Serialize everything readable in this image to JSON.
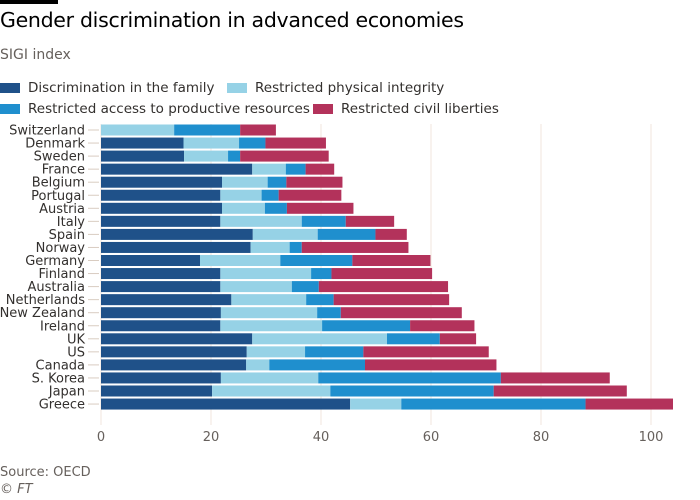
{
  "header": {
    "title": "Gender discrimination in advanced economies",
    "subtitle": "SIGI index"
  },
  "footer": {
    "source": "Source: OECD",
    "copyright": "© FT"
  },
  "colors": {
    "family": "#1f5189",
    "physical": "#96d2e6",
    "resources": "#1f8fce",
    "civil": "#b3325b",
    "grid": "#f2e5dc",
    "topbar": "#000000"
  },
  "chart_data": {
    "type": "bar",
    "orientation": "horizontal",
    "stacked": true,
    "title": "Gender discrimination in advanced economies",
    "subtitle": "SIGI index",
    "xlabel": "",
    "ylabel": "",
    "xlim": [
      0,
      105
    ],
    "xticks": [
      0,
      20,
      40,
      60,
      80,
      100
    ],
    "grid": true,
    "legend_position": "top",
    "categories": [
      "Switzerland",
      "Denmark",
      "Sweden",
      "France",
      "Belgium",
      "Portugal",
      "Austria",
      "Italy",
      "Spain",
      "Norway",
      "Germany",
      "Finland",
      "Australia",
      "Netherlands",
      "New Zealand",
      "Ireland",
      "UK",
      "US",
      "Canada",
      "S. Korea",
      "Japan",
      "Greece"
    ],
    "series": [
      {
        "name": "Discrimination in the family",
        "key": "family",
        "values": [
          0,
          15.0,
          15.1,
          27.5,
          22.0,
          21.7,
          22.0,
          21.7,
          27.6,
          27.2,
          18.0,
          21.7,
          21.7,
          23.7,
          21.8,
          21.7,
          27.5,
          26.5,
          26.4,
          21.8,
          20.2,
          45.3
        ]
      },
      {
        "name": "Restricted physical integrity",
        "key": "physical",
        "values": [
          13.3,
          10.1,
          8.0,
          6.1,
          8.3,
          7.5,
          7.8,
          14.8,
          11.8,
          7.1,
          14.6,
          16.5,
          13.0,
          13.6,
          17.5,
          18.5,
          24.5,
          10.6,
          4.2,
          17.7,
          21.5,
          9.3
        ]
      },
      {
        "name": "Restricted access to productive resources",
        "key": "resources",
        "values": [
          12.0,
          4.8,
          2.2,
          3.6,
          3.4,
          3.1,
          4.0,
          8.0,
          10.5,
          2.2,
          13.1,
          3.7,
          4.9,
          5.0,
          4.3,
          16.0,
          9.6,
          10.6,
          17.4,
          33.2,
          29.7,
          33.5
        ]
      },
      {
        "name": "Restricted civil liberties",
        "key": "civil",
        "values": [
          6.5,
          11.0,
          16.1,
          5.2,
          10.2,
          11.4,
          12.1,
          8.8,
          5.7,
          19.4,
          14.2,
          18.3,
          23.5,
          21.0,
          22.0,
          11.7,
          6.6,
          22.8,
          23.9,
          19.8,
          24.2,
          15.9
        ]
      }
    ]
  }
}
